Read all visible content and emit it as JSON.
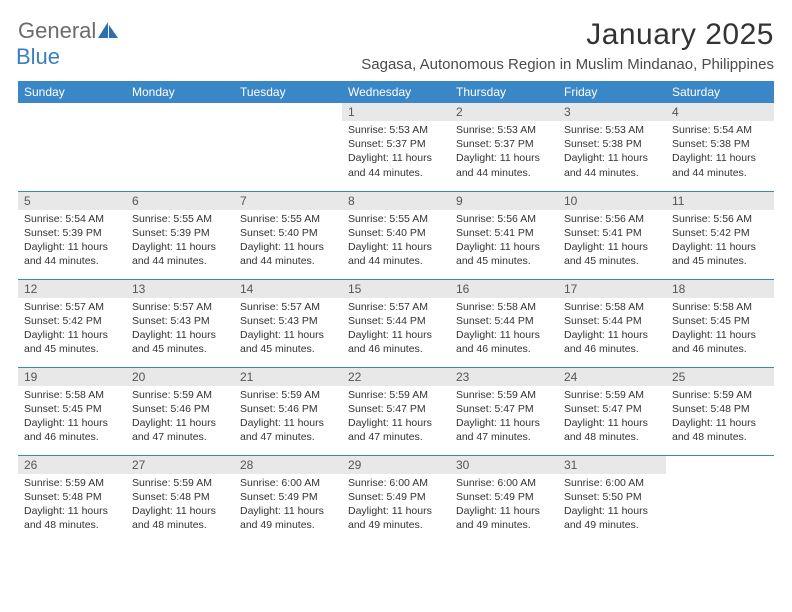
{
  "brand": {
    "main": "General",
    "sub": "Blue"
  },
  "title": "January 2025",
  "location": "Sagasa, Autonomous Region in Muslim Mindanao, Philippines",
  "colors": {
    "header_bg": "#3a87c7",
    "header_text": "#ffffff",
    "daynum_bg": "#e8e8e8",
    "rule": "#3a87c7",
    "logo_main": "#6b6b6b",
    "logo_sub": "#3a7fbf"
  },
  "weekdays": [
    "Sunday",
    "Monday",
    "Tuesday",
    "Wednesday",
    "Thursday",
    "Friday",
    "Saturday"
  ],
  "weeks": [
    [
      {
        "empty": true
      },
      {
        "empty": true
      },
      {
        "empty": true
      },
      {
        "num": "1",
        "sunrise": "Sunrise: 5:53 AM",
        "sunset": "Sunset: 5:37 PM",
        "day1": "Daylight: 11 hours",
        "day2": "and 44 minutes."
      },
      {
        "num": "2",
        "sunrise": "Sunrise: 5:53 AM",
        "sunset": "Sunset: 5:37 PM",
        "day1": "Daylight: 11 hours",
        "day2": "and 44 minutes."
      },
      {
        "num": "3",
        "sunrise": "Sunrise: 5:53 AM",
        "sunset": "Sunset: 5:38 PM",
        "day1": "Daylight: 11 hours",
        "day2": "and 44 minutes."
      },
      {
        "num": "4",
        "sunrise": "Sunrise: 5:54 AM",
        "sunset": "Sunset: 5:38 PM",
        "day1": "Daylight: 11 hours",
        "day2": "and 44 minutes."
      }
    ],
    [
      {
        "num": "5",
        "sunrise": "Sunrise: 5:54 AM",
        "sunset": "Sunset: 5:39 PM",
        "day1": "Daylight: 11 hours",
        "day2": "and 44 minutes."
      },
      {
        "num": "6",
        "sunrise": "Sunrise: 5:55 AM",
        "sunset": "Sunset: 5:39 PM",
        "day1": "Daylight: 11 hours",
        "day2": "and 44 minutes."
      },
      {
        "num": "7",
        "sunrise": "Sunrise: 5:55 AM",
        "sunset": "Sunset: 5:40 PM",
        "day1": "Daylight: 11 hours",
        "day2": "and 44 minutes."
      },
      {
        "num": "8",
        "sunrise": "Sunrise: 5:55 AM",
        "sunset": "Sunset: 5:40 PM",
        "day1": "Daylight: 11 hours",
        "day2": "and 44 minutes."
      },
      {
        "num": "9",
        "sunrise": "Sunrise: 5:56 AM",
        "sunset": "Sunset: 5:41 PM",
        "day1": "Daylight: 11 hours",
        "day2": "and 45 minutes."
      },
      {
        "num": "10",
        "sunrise": "Sunrise: 5:56 AM",
        "sunset": "Sunset: 5:41 PM",
        "day1": "Daylight: 11 hours",
        "day2": "and 45 minutes."
      },
      {
        "num": "11",
        "sunrise": "Sunrise: 5:56 AM",
        "sunset": "Sunset: 5:42 PM",
        "day1": "Daylight: 11 hours",
        "day2": "and 45 minutes."
      }
    ],
    [
      {
        "num": "12",
        "sunrise": "Sunrise: 5:57 AM",
        "sunset": "Sunset: 5:42 PM",
        "day1": "Daylight: 11 hours",
        "day2": "and 45 minutes."
      },
      {
        "num": "13",
        "sunrise": "Sunrise: 5:57 AM",
        "sunset": "Sunset: 5:43 PM",
        "day1": "Daylight: 11 hours",
        "day2": "and 45 minutes."
      },
      {
        "num": "14",
        "sunrise": "Sunrise: 5:57 AM",
        "sunset": "Sunset: 5:43 PM",
        "day1": "Daylight: 11 hours",
        "day2": "and 45 minutes."
      },
      {
        "num": "15",
        "sunrise": "Sunrise: 5:57 AM",
        "sunset": "Sunset: 5:44 PM",
        "day1": "Daylight: 11 hours",
        "day2": "and 46 minutes."
      },
      {
        "num": "16",
        "sunrise": "Sunrise: 5:58 AM",
        "sunset": "Sunset: 5:44 PM",
        "day1": "Daylight: 11 hours",
        "day2": "and 46 minutes."
      },
      {
        "num": "17",
        "sunrise": "Sunrise: 5:58 AM",
        "sunset": "Sunset: 5:44 PM",
        "day1": "Daylight: 11 hours",
        "day2": "and 46 minutes."
      },
      {
        "num": "18",
        "sunrise": "Sunrise: 5:58 AM",
        "sunset": "Sunset: 5:45 PM",
        "day1": "Daylight: 11 hours",
        "day2": "and 46 minutes."
      }
    ],
    [
      {
        "num": "19",
        "sunrise": "Sunrise: 5:58 AM",
        "sunset": "Sunset: 5:45 PM",
        "day1": "Daylight: 11 hours",
        "day2": "and 46 minutes."
      },
      {
        "num": "20",
        "sunrise": "Sunrise: 5:59 AM",
        "sunset": "Sunset: 5:46 PM",
        "day1": "Daylight: 11 hours",
        "day2": "and 47 minutes."
      },
      {
        "num": "21",
        "sunrise": "Sunrise: 5:59 AM",
        "sunset": "Sunset: 5:46 PM",
        "day1": "Daylight: 11 hours",
        "day2": "and 47 minutes."
      },
      {
        "num": "22",
        "sunrise": "Sunrise: 5:59 AM",
        "sunset": "Sunset: 5:47 PM",
        "day1": "Daylight: 11 hours",
        "day2": "and 47 minutes."
      },
      {
        "num": "23",
        "sunrise": "Sunrise: 5:59 AM",
        "sunset": "Sunset: 5:47 PM",
        "day1": "Daylight: 11 hours",
        "day2": "and 47 minutes."
      },
      {
        "num": "24",
        "sunrise": "Sunrise: 5:59 AM",
        "sunset": "Sunset: 5:47 PM",
        "day1": "Daylight: 11 hours",
        "day2": "and 48 minutes."
      },
      {
        "num": "25",
        "sunrise": "Sunrise: 5:59 AM",
        "sunset": "Sunset: 5:48 PM",
        "day1": "Daylight: 11 hours",
        "day2": "and 48 minutes."
      }
    ],
    [
      {
        "num": "26",
        "sunrise": "Sunrise: 5:59 AM",
        "sunset": "Sunset: 5:48 PM",
        "day1": "Daylight: 11 hours",
        "day2": "and 48 minutes."
      },
      {
        "num": "27",
        "sunrise": "Sunrise: 5:59 AM",
        "sunset": "Sunset: 5:48 PM",
        "day1": "Daylight: 11 hours",
        "day2": "and 48 minutes."
      },
      {
        "num": "28",
        "sunrise": "Sunrise: 6:00 AM",
        "sunset": "Sunset: 5:49 PM",
        "day1": "Daylight: 11 hours",
        "day2": "and 49 minutes."
      },
      {
        "num": "29",
        "sunrise": "Sunrise: 6:00 AM",
        "sunset": "Sunset: 5:49 PM",
        "day1": "Daylight: 11 hours",
        "day2": "and 49 minutes."
      },
      {
        "num": "30",
        "sunrise": "Sunrise: 6:00 AM",
        "sunset": "Sunset: 5:49 PM",
        "day1": "Daylight: 11 hours",
        "day2": "and 49 minutes."
      },
      {
        "num": "31",
        "sunrise": "Sunrise: 6:00 AM",
        "sunset": "Sunset: 5:50 PM",
        "day1": "Daylight: 11 hours",
        "day2": "and 49 minutes."
      },
      {
        "empty": true
      }
    ]
  ]
}
